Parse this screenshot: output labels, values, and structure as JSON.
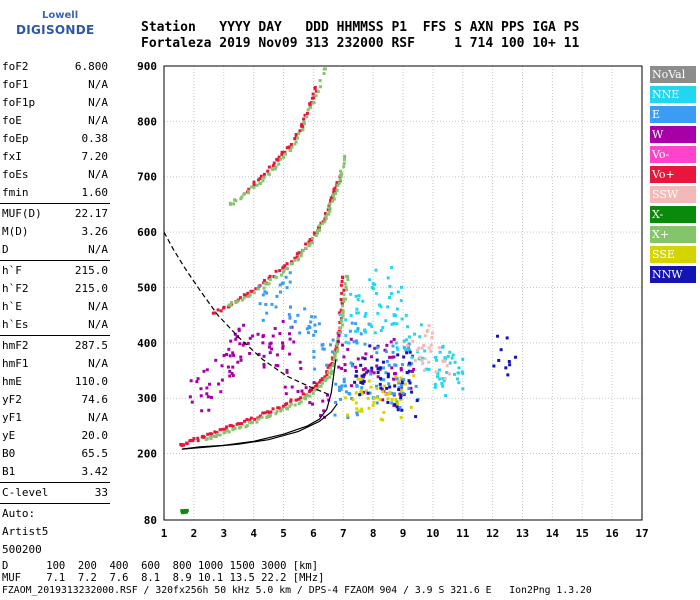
{
  "logo": {
    "line1": "Lowell",
    "line2": "DIGISONDE"
  },
  "header": {
    "line1": "Station   YYYY DAY   DDD HHMMSS P1  FFS S AXN PPS IGA PS",
    "line2": "Fortaleza 2019 Nov09 313 232000 RSF     1 714 100 10+ 11"
  },
  "params": [
    {
      "name": "foF2",
      "value": "6.800"
    },
    {
      "name": "foF1",
      "value": "N/A"
    },
    {
      "name": "foF1p",
      "value": "N/A"
    },
    {
      "name": "foE",
      "value": "N/A"
    },
    {
      "name": "foEp",
      "value": "0.38"
    },
    {
      "name": "fxI",
      "value": "7.20"
    },
    {
      "name": "foEs",
      "value": "N/A"
    },
    {
      "name": "fmin",
      "value": "1.60"
    },
    {
      "sep": true
    },
    {
      "name": "MUF(D)",
      "value": "22.17"
    },
    {
      "name": "M(D)",
      "value": "3.26"
    },
    {
      "name": "D",
      "value": "N/A"
    },
    {
      "sep": true
    },
    {
      "name": "h`F",
      "value": "215.0"
    },
    {
      "name": "h`F2",
      "value": "215.0"
    },
    {
      "name": "h`E",
      "value": "N/A"
    },
    {
      "name": "h`Es",
      "value": "N/A"
    },
    {
      "sep": true
    },
    {
      "name": "hmF2",
      "value": "287.5"
    },
    {
      "name": "hmF1",
      "value": "N/A"
    },
    {
      "name": "hmE",
      "value": "110.0"
    },
    {
      "name": "yF2",
      "value": "74.6"
    },
    {
      "name": "yF1",
      "value": "N/A"
    },
    {
      "name": "yE",
      "value": "20.0"
    },
    {
      "name": "B0",
      "value": "65.5"
    },
    {
      "name": "B1",
      "value": "3.42"
    },
    {
      "sep": true
    },
    {
      "name": "C-level",
      "value": "33"
    },
    {
      "sep": true
    },
    {
      "name": "Auto:",
      "value": ""
    },
    {
      "name": "Artist5",
      "value": ""
    },
    {
      "name": "500200",
      "value": ""
    }
  ],
  "legend": [
    {
      "label": "NoVal",
      "color": "#8c8c8c"
    },
    {
      "label": "NNE",
      "color": "#22d6f0"
    },
    {
      "label": "E",
      "color": "#3a9cf2"
    },
    {
      "label": "W",
      "color": "#a800a8"
    },
    {
      "label": "Vo-",
      "color": "#ff44cc"
    },
    {
      "label": "Vo+",
      "color": "#e8163a"
    },
    {
      "label": "SSW",
      "color": "#f5b8b8"
    },
    {
      "label": "X-",
      "color": "#0a8a0a"
    },
    {
      "label": "X+",
      "color": "#86c46c"
    },
    {
      "label": "SSE",
      "color": "#d4d400"
    },
    {
      "label": "NNW",
      "color": "#1414b4"
    }
  ],
  "footer": {
    "line1": "D      100  200  400  600  800 1000 1500 3000 [km]",
    "line2": "MUF    7.1  7.2  7.6  8.1  8.9 10.1 13.5 22.2 [MHz]",
    "line3": "FZAOM_2019313232000.RSF / 320fx256h 50 kHz 5.0 km / DPS-4 FZAOM 904 / 3.9 S 321.6 E   Ion2Png 1.3.20"
  },
  "chart_data": {
    "type": "scatter",
    "title": "",
    "xlabel": "",
    "ylabel": "",
    "xlim": [
      1,
      17
    ],
    "ylim": [
      80,
      900
    ],
    "x_ticks": [
      1,
      2,
      3,
      4,
      5,
      6,
      7,
      8,
      9,
      10,
      11,
      12,
      13,
      14,
      15,
      16,
      17
    ],
    "y_ticks": [
      80,
      200,
      300,
      400,
      500,
      600,
      700,
      800,
      900
    ],
    "grid": true,
    "series": [
      {
        "name": "Vo+",
        "color": "#e8163a",
        "x": [
          1.6,
          1.9,
          2.3,
          2.8,
          3.3,
          3.9,
          4.5,
          5.1,
          5.7,
          6.1,
          6.4,
          6.6,
          6.75,
          6.85,
          6.95,
          7.0
        ],
        "y": [
          215,
          222,
          230,
          240,
          250,
          262,
          275,
          290,
          305,
          320,
          340,
          360,
          390,
          420,
          470,
          520
        ]
      },
      {
        "name": "X+",
        "color": "#86c46c",
        "x": [
          2.4,
          2.8,
          3.3,
          3.9,
          4.5,
          5.1,
          5.7,
          6.1,
          6.4,
          6.6,
          6.75,
          6.85,
          6.95,
          7.05,
          7.15
        ],
        "y": [
          225,
          232,
          242,
          255,
          268,
          282,
          298,
          315,
          330,
          350,
          370,
          400,
          440,
          480,
          520
        ]
      },
      {
        "name": "Vo+ 2nd hop",
        "color": "#e8163a",
        "x": [
          2.7,
          3.2,
          3.8,
          4.4,
          5.0,
          5.5,
          5.9,
          6.2,
          6.5,
          6.7,
          6.9
        ],
        "y": [
          455,
          468,
          488,
          510,
          535,
          560,
          585,
          610,
          640,
          670,
          700
        ]
      },
      {
        "name": "X+ 2nd hop",
        "color": "#86c46c",
        "x": [
          3.2,
          3.8,
          4.4,
          5.0,
          5.5,
          5.9,
          6.2,
          6.5,
          6.7,
          6.9,
          7.05
        ],
        "y": [
          468,
          485,
          505,
          528,
          552,
          578,
          605,
          635,
          665,
          700,
          735
        ]
      },
      {
        "name": "Vo+ 3rd hop",
        "color": "#e8163a",
        "x": [
          3.8,
          4.3,
          4.8,
          5.2,
          5.6,
          5.9,
          6.1
        ],
        "y": [
          675,
          700,
          730,
          755,
          790,
          830,
          860
        ]
      },
      {
        "name": "X+ 3rd hop",
        "color": "#86c46c",
        "x": [
          3.2,
          3.7,
          4.2,
          4.7,
          5.2,
          5.6,
          6.0,
          6.4
        ],
        "y": [
          650,
          668,
          690,
          715,
          745,
          785,
          835,
          895
        ]
      },
      {
        "name": "W",
        "color": "#a800a8",
        "x": [
          2.2,
          2.6,
          3.0,
          3.4,
          3.8,
          4.2,
          4.6,
          5.0,
          5.4,
          6.2,
          7.2,
          7.6,
          8.0,
          8.4,
          8.8,
          9.0
        ],
        "y": [
          300,
          330,
          360,
          380,
          400,
          380,
          390,
          410,
          330,
          300,
          380,
          350,
          330,
          370,
          320,
          340
        ]
      },
      {
        "name": "E",
        "color": "#3a9cf2",
        "x": [
          4.5,
          5.0,
          5.5,
          6.0,
          6.3,
          7.0,
          7.2,
          7.5,
          7.8,
          8.2,
          8.6,
          9.0,
          9.2
        ],
        "y": [
          470,
          500,
          440,
          420,
          380,
          300,
          330,
          400,
          290,
          360,
          310,
          380,
          330
        ]
      },
      {
        "name": "NNE",
        "color": "#22d6f0",
        "x": [
          7.2,
          7.6,
          8.0,
          8.3,
          8.7,
          9.0,
          9.3,
          10.0,
          10.3,
          10.6,
          11.0
        ],
        "y": [
          420,
          480,
          450,
          500,
          470,
          420,
          400,
          350,
          340,
          360,
          350
        ]
      },
      {
        "name": "SSE",
        "color": "#d4d400",
        "x": [
          7.4,
          7.8,
          8.2,
          8.6,
          9.0
        ],
        "y": [
          300,
          310,
          295,
          290,
          305
        ]
      },
      {
        "name": "SSW",
        "color": "#f5b8b8",
        "x": [
          9.5,
          9.8,
          10.2
        ],
        "y": [
          380,
          395,
          370
        ]
      },
      {
        "name": "NNW",
        "color": "#1414b4",
        "x": [
          7.5,
          8.0,
          8.5,
          8.9,
          9.2,
          12.4
        ],
        "y": [
          330,
          360,
          320,
          350,
          300,
          376
        ]
      },
      {
        "name": "X-",
        "color": "#0a8a0a",
        "x": [
          1.6,
          1.8
        ],
        "y": [
          95,
          97
        ]
      }
    ],
    "lines": [
      {
        "name": "profile",
        "style": "solid",
        "x": [
          1.6,
          2.2,
          3.0,
          4.0,
          5.0,
          5.8,
          6.2,
          6.45,
          6.6,
          6.75
        ],
        "y": [
          208,
          212,
          215,
          222,
          235,
          250,
          262,
          280,
          310,
          370
        ]
      },
      {
        "name": "profile-lower",
        "style": "solid",
        "x": [
          1.6,
          2.5,
          3.5,
          4.5,
          5.5,
          6.2,
          6.6,
          6.8
        ],
        "y": [
          208,
          212,
          217,
          225,
          240,
          258,
          275,
          290
        ]
      },
      {
        "name": "extrapolation",
        "style": "dashed",
        "x": [
          1.0,
          1.3,
          1.7,
          2.2,
          2.8,
          3.5,
          4.3,
          5.1,
          5.9,
          6.6
        ],
        "y": [
          600,
          570,
          535,
          495,
          450,
          410,
          370,
          340,
          320,
          305
        ]
      }
    ]
  }
}
